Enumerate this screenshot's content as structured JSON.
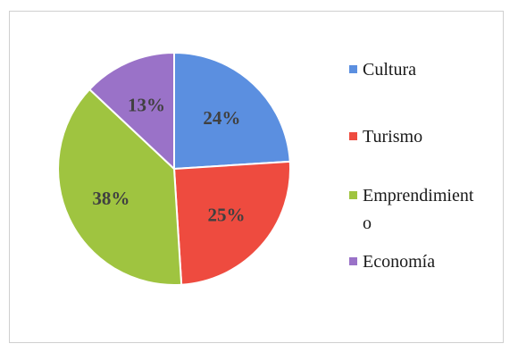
{
  "chart_data": {
    "type": "pie",
    "title": "",
    "categories": [
      "Cultura",
      "Turismo",
      "Emprendimiento",
      "Economía"
    ],
    "values": [
      24,
      25,
      38,
      13
    ],
    "labels": [
      "24%",
      "25%",
      "38%",
      "13%"
    ],
    "colors": [
      "#5b8fe0",
      "#ee4b3f",
      "#9fc440",
      "#9a72c8"
    ],
    "legend_position": "right",
    "legend": [
      {
        "lines": [
          "Cultura"
        ]
      },
      {
        "lines": [
          "Turismo"
        ]
      },
      {
        "lines": [
          "Emprendimient",
          "o"
        ]
      },
      {
        "lines": [
          "Economía"
        ]
      }
    ]
  }
}
